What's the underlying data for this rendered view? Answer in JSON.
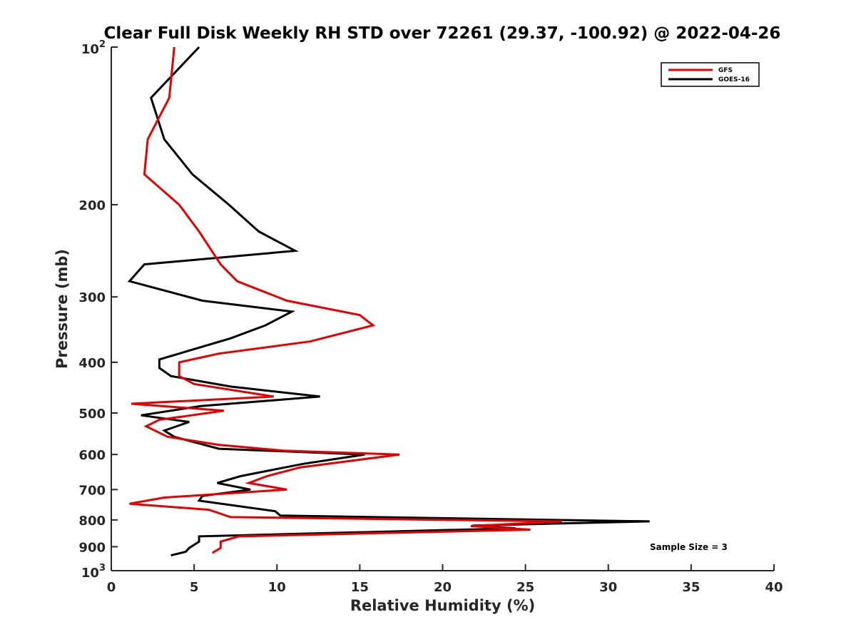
{
  "chart_data": {
    "type": "line",
    "title": "Clear Full Disk Weekly RH STD over 72261 (29.37, -100.92) @ 2022-04-26",
    "xlabel": "Relative Humidity (%)",
    "ylabel": "Pressure (mb)",
    "xlim": [
      0,
      40
    ],
    "ylim": [
      100,
      1000
    ],
    "y_scale": "log",
    "y_reversed": true,
    "grid": false,
    "legend_position": "top-right",
    "x_ticks": [
      "0",
      "5",
      "10",
      "15",
      "20",
      "25",
      "30",
      "35",
      "40"
    ],
    "y_ticks": [
      {
        "value": 100,
        "base": "10",
        "exp": "2"
      },
      {
        "value": 200,
        "label": "200"
      },
      {
        "value": 300,
        "label": "300"
      },
      {
        "value": 400,
        "label": "400"
      },
      {
        "value": 500,
        "label": "500"
      },
      {
        "value": 600,
        "label": "600"
      },
      {
        "value": 700,
        "label": "700"
      },
      {
        "value": 800,
        "label": "800"
      },
      {
        "value": 900,
        "label": "900"
      },
      {
        "value": 1000,
        "base": "10",
        "exp": "3"
      }
    ],
    "series": [
      {
        "name": "GFS",
        "color": "#e60000",
        "points": [
          [
            3.8,
            100
          ],
          [
            3.5,
            125
          ],
          [
            2.2,
            150
          ],
          [
            2.0,
            175
          ],
          [
            4.1,
            200
          ],
          [
            5.3,
            225
          ],
          [
            6.6,
            260
          ],
          [
            7.6,
            280
          ],
          [
            10.6,
            305
          ],
          [
            15.0,
            325
          ],
          [
            15.8,
            340
          ],
          [
            12.0,
            365
          ],
          [
            6.5,
            385
          ],
          [
            4.1,
            400
          ],
          [
            4.1,
            425
          ],
          [
            5.0,
            440
          ],
          [
            9.8,
            465
          ],
          [
            1.2,
            480
          ],
          [
            6.8,
            495
          ],
          [
            2.9,
            515
          ],
          [
            2.1,
            530
          ],
          [
            3.4,
            555
          ],
          [
            6.5,
            575
          ],
          [
            10.4,
            590
          ],
          [
            17.4,
            600
          ],
          [
            11.4,
            635
          ],
          [
            9.4,
            660
          ],
          [
            8.3,
            680
          ],
          [
            10.6,
            700
          ],
          [
            3.2,
            725
          ],
          [
            1.1,
            745
          ],
          [
            5.9,
            765
          ],
          [
            7.2,
            790
          ],
          [
            27.2,
            805
          ],
          [
            21.7,
            822
          ],
          [
            25.3,
            835
          ],
          [
            7.7,
            860
          ],
          [
            6.6,
            880
          ],
          [
            6.6,
            905
          ],
          [
            6.1,
            925
          ]
        ]
      },
      {
        "name": "GOES-16",
        "color": "#000000",
        "points": [
          [
            5.3,
            100
          ],
          [
            2.4,
            125
          ],
          [
            3.2,
            150
          ],
          [
            4.9,
            175
          ],
          [
            7.1,
            200
          ],
          [
            8.9,
            225
          ],
          [
            11.1,
            245
          ],
          [
            2.0,
            260
          ],
          [
            1.1,
            280
          ],
          [
            5.5,
            305
          ],
          [
            10.9,
            320
          ],
          [
            9.3,
            340
          ],
          [
            7.2,
            360
          ],
          [
            2.9,
            395
          ],
          [
            2.9,
            410
          ],
          [
            3.6,
            425
          ],
          [
            7.2,
            445
          ],
          [
            12.6,
            465
          ],
          [
            5.4,
            485
          ],
          [
            1.8,
            505
          ],
          [
            4.7,
            520
          ],
          [
            3.2,
            540
          ],
          [
            3.8,
            555
          ],
          [
            6.5,
            585
          ],
          [
            15.3,
            600
          ],
          [
            11.6,
            625
          ],
          [
            7.8,
            660
          ],
          [
            6.4,
            680
          ],
          [
            8.4,
            700
          ],
          [
            5.5,
            720
          ],
          [
            5.3,
            735
          ],
          [
            9.9,
            770
          ],
          [
            10.2,
            785
          ],
          [
            32.5,
            805
          ],
          [
            21.8,
            820
          ],
          [
            24.4,
            830
          ],
          [
            5.3,
            860
          ],
          [
            5.3,
            880
          ],
          [
            4.7,
            905
          ],
          [
            4.5,
            920
          ],
          [
            3.6,
            935
          ]
        ]
      }
    ],
    "annotation": "Sample Size = 3"
  }
}
